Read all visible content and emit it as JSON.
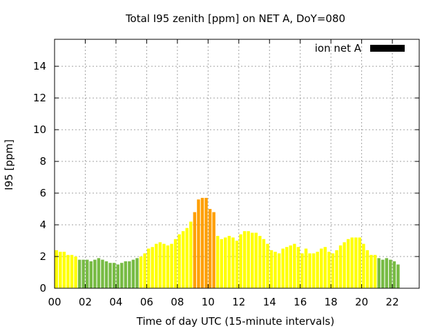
{
  "chart_data": {
    "type": "bar",
    "title": "Total I95 zenith [ppm] on NET A, DoY=080",
    "xlabel": "Time of day UTC (15-minute intervals)",
    "ylabel": "I95 [ppm]",
    "ylim": [
      0,
      15.7
    ],
    "xlim": [
      0,
      23.75
    ],
    "yticks": [
      0,
      2,
      4,
      6,
      8,
      10,
      12,
      14
    ],
    "yticklabels": [
      "0",
      "2",
      "4",
      "6",
      "8",
      "10",
      "12",
      "14"
    ],
    "xticks": [
      0,
      2,
      4,
      6,
      8,
      10,
      12,
      14,
      16,
      18,
      20,
      22
    ],
    "xticklabels": [
      "00",
      "02",
      "04",
      "06",
      "08",
      "10",
      "12",
      "14",
      "16",
      "18",
      "20",
      "22"
    ],
    "grid": true,
    "legend": {
      "position": "top-right",
      "label": "ion net A",
      "color": "#000000"
    },
    "colors": {
      "green": "#77bb44",
      "yellow": "#ffff00",
      "orange": "#ff9f00"
    },
    "interval_hours": 0.25,
    "series": [
      {
        "values": [
          2.4,
          2.3,
          2.3,
          2.1,
          2.1,
          2.0,
          1.8,
          1.8,
          1.8,
          1.7,
          1.8,
          1.9,
          1.8,
          1.7,
          1.6,
          1.6,
          1.5,
          1.6,
          1.7,
          1.7,
          1.8,
          1.9,
          2.0,
          2.2,
          2.5,
          2.6,
          2.8,
          2.9,
          2.8,
          2.7,
          2.8,
          3.1,
          3.4,
          3.6,
          3.8,
          4.2,
          4.8,
          5.6,
          5.7,
          5.7,
          5.0,
          4.8,
          3.3,
          3.1,
          3.2,
          3.3,
          3.2,
          3.0,
          3.4,
          3.6,
          3.6,
          3.5,
          3.5,
          3.3,
          3.1,
          2.8,
          2.4,
          2.3,
          2.2,
          2.5,
          2.6,
          2.7,
          2.8,
          2.6,
          2.2,
          2.5,
          2.2,
          2.2,
          2.3,
          2.5,
          2.6,
          2.3,
          2.2,
          2.4,
          2.7,
          2.9,
          3.1,
          3.2,
          3.2,
          3.2,
          2.8,
          2.4,
          2.1,
          2.1,
          1.9,
          1.8,
          1.9,
          1.8,
          1.7,
          1.5
        ],
        "colors": [
          "yellow",
          "yellow",
          "yellow",
          "yellow",
          "yellow",
          "yellow",
          "green",
          "green",
          "green",
          "green",
          "green",
          "green",
          "green",
          "green",
          "green",
          "green",
          "green",
          "green",
          "green",
          "green",
          "green",
          "green",
          "yellow",
          "yellow",
          "yellow",
          "yellow",
          "yellow",
          "yellow",
          "yellow",
          "yellow",
          "yellow",
          "yellow",
          "yellow",
          "yellow",
          "yellow",
          "yellow",
          "orange",
          "orange",
          "orange",
          "orange",
          "orange",
          "orange",
          "yellow",
          "yellow",
          "yellow",
          "yellow",
          "yellow",
          "yellow",
          "yellow",
          "yellow",
          "yellow",
          "yellow",
          "yellow",
          "yellow",
          "yellow",
          "yellow",
          "yellow",
          "yellow",
          "yellow",
          "yellow",
          "yellow",
          "yellow",
          "yellow",
          "yellow",
          "yellow",
          "yellow",
          "yellow",
          "yellow",
          "yellow",
          "yellow",
          "yellow",
          "yellow",
          "yellow",
          "yellow",
          "yellow",
          "yellow",
          "yellow",
          "yellow",
          "yellow",
          "yellow",
          "yellow",
          "yellow",
          "yellow",
          "yellow",
          "green",
          "green",
          "green",
          "green",
          "green",
          "green"
        ]
      }
    ]
  }
}
